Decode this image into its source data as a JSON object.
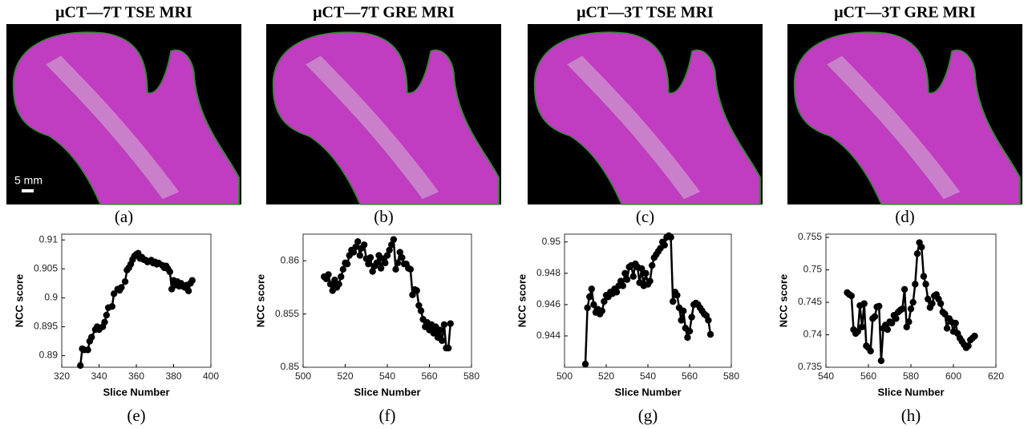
{
  "images": [
    {
      "title": "μCT—7T TSE MRI",
      "label": "(a)"
    },
    {
      "title": "μCT—7T GRE MRI",
      "label": "(b)"
    },
    {
      "title": "μCT—3T TSE MRI",
      "label": "(c)"
    },
    {
      "title": "μCT—3T GRE MRI",
      "label": "(d)"
    }
  ],
  "scale_bar": "5 mm",
  "chart_data": [
    {
      "type": "line",
      "panel_label": "(e)",
      "x_label": "Slice Number",
      "y_label": "NCC score",
      "color": "#000000",
      "xlim": [
        320,
        400
      ],
      "xticks": [
        320,
        340,
        360,
        380,
        400
      ],
      "ylim": [
        0.888,
        0.911
      ],
      "yticks": [
        0.89,
        0.895,
        0.9,
        0.905,
        0.91
      ],
      "x": [
        330,
        331,
        332,
        334,
        335,
        336,
        338,
        339,
        340,
        342,
        343,
        344,
        345,
        347,
        348,
        350,
        351,
        352,
        354,
        355,
        356,
        357,
        358,
        359,
        360,
        361,
        362,
        363,
        364,
        365,
        366,
        368,
        369,
        370,
        371,
        372,
        374,
        375,
        376,
        377,
        378,
        379,
        380,
        381,
        382,
        383,
        384,
        385,
        386,
        387,
        388,
        389,
        390
      ],
      "values": [
        0.8883,
        0.8912,
        0.891,
        0.891,
        0.8925,
        0.8932,
        0.8945,
        0.895,
        0.8945,
        0.895,
        0.8958,
        0.897,
        0.8983,
        0.8985,
        0.9007,
        0.9015,
        0.9013,
        0.9018,
        0.9028,
        0.9048,
        0.9052,
        0.9058,
        0.9066,
        0.9072,
        0.9075,
        0.9077,
        0.9068,
        0.907,
        0.9066,
        0.9065,
        0.9062,
        0.9065,
        0.906,
        0.9062,
        0.9058,
        0.906,
        0.9056,
        0.9052,
        0.9055,
        0.905,
        0.9045,
        0.9015,
        0.903,
        0.9022,
        0.9028,
        0.902,
        0.9025,
        0.902,
        0.9018,
        0.9022,
        0.9012,
        0.9025,
        0.903
      ]
    },
    {
      "type": "line",
      "panel_label": "(f)",
      "x_label": "Slice Number",
      "y_label": "NCC score",
      "color": "#000000",
      "xlim": [
        500,
        580
      ],
      "xticks": [
        500,
        520,
        540,
        560,
        580
      ],
      "ylim": [
        0.85,
        0.8625
      ],
      "yticks": [
        0.85,
        0.855,
        0.86
      ],
      "x": [
        510,
        511,
        512,
        513,
        514,
        515,
        516,
        517,
        518,
        519,
        520,
        521,
        522,
        523,
        524,
        525,
        526,
        527,
        528,
        529,
        530,
        531,
        532,
        533,
        534,
        535,
        536,
        537,
        538,
        539,
        540,
        541,
        542,
        543,
        544,
        545,
        546,
        547,
        548,
        549,
        550,
        551,
        552,
        553,
        554,
        555,
        556,
        557,
        558,
        559,
        560,
        561,
        562,
        563,
        564,
        565,
        566,
        567,
        568,
        569,
        570
      ],
      "values": [
        0.8585,
        0.8583,
        0.8587,
        0.8578,
        0.8572,
        0.8582,
        0.8575,
        0.8578,
        0.8585,
        0.8592,
        0.8598,
        0.8597,
        0.8605,
        0.861,
        0.8608,
        0.8613,
        0.8618,
        0.8605,
        0.8612,
        0.8615,
        0.8602,
        0.8597,
        0.8603,
        0.859,
        0.8595,
        0.8598,
        0.8605,
        0.8593,
        0.8602,
        0.8598,
        0.8605,
        0.861,
        0.8615,
        0.862,
        0.8592,
        0.8598,
        0.8608,
        0.8603,
        0.8597,
        0.8597,
        0.8593,
        0.8592,
        0.8568,
        0.8573,
        0.8572,
        0.8558,
        0.8553,
        0.8545,
        0.8538,
        0.8542,
        0.8535,
        0.854,
        0.8532,
        0.8538,
        0.8528,
        0.8535,
        0.8525,
        0.854,
        0.8518,
        0.8518,
        0.8541
      ]
    },
    {
      "type": "line",
      "panel_label": "(g)",
      "x_label": "Slice Number",
      "y_label": "NCC score",
      "color": "#000000",
      "xlim": [
        500,
        580
      ],
      "xticks": [
        500,
        520,
        540,
        560,
        580
      ],
      "ylim": [
        0.942,
        0.9505
      ],
      "yticks": [
        0.944,
        0.946,
        0.948,
        0.95
      ],
      "x": [
        510,
        511,
        512,
        513,
        514,
        515,
        516,
        517,
        518,
        519,
        520,
        521,
        522,
        523,
        524,
        525,
        526,
        527,
        528,
        529,
        530,
        531,
        532,
        533,
        534,
        535,
        536,
        537,
        538,
        539,
        540,
        541,
        542,
        543,
        544,
        545,
        546,
        547,
        548,
        549,
        550,
        551,
        552,
        553,
        554,
        555,
        556,
        557,
        558,
        559,
        560,
        561,
        562,
        563,
        564,
        565,
        566,
        567,
        568,
        569,
        570
      ],
      "values": [
        0.9422,
        0.9458,
        0.9465,
        0.947,
        0.946,
        0.9455,
        0.9457,
        0.9454,
        0.9456,
        0.9462,
        0.9466,
        0.9465,
        0.9468,
        0.9467,
        0.947,
        0.9468,
        0.9472,
        0.9475,
        0.9472,
        0.948,
        0.9476,
        0.9484,
        0.9485,
        0.9478,
        0.9486,
        0.9484,
        0.9474,
        0.9483,
        0.9472,
        0.948,
        0.9473,
        0.9475,
        0.9485,
        0.949,
        0.9492,
        0.9494,
        0.9496,
        0.95,
        0.9498,
        0.9503,
        0.9504,
        0.9503,
        0.9462,
        0.9468,
        0.9466,
        0.9458,
        0.945,
        0.9456,
        0.9445,
        0.9439,
        0.9443,
        0.9452,
        0.946,
        0.9461,
        0.946,
        0.9458,
        0.9456,
        0.9454,
        0.9453,
        0.945,
        0.9441
      ]
    },
    {
      "type": "line",
      "panel_label": "(h)",
      "x_label": "Slice Number",
      "y_label": "NCC score",
      "color": "#000000",
      "xlim": [
        540,
        620
      ],
      "xticks": [
        540,
        560,
        580,
        600,
        620
      ],
      "ylim": [
        0.735,
        0.7555
      ],
      "yticks": [
        0.735,
        0.74,
        0.745,
        0.75,
        0.755
      ],
      "x": [
        550,
        551,
        552,
        553,
        554,
        555,
        556,
        557,
        558,
        559,
        560,
        561,
        562,
        563,
        564,
        565,
        566,
        567,
        568,
        569,
        570,
        571,
        572,
        573,
        574,
        575,
        576,
        577,
        578,
        579,
        580,
        581,
        582,
        583,
        584,
        585,
        586,
        587,
        588,
        589,
        590,
        591,
        592,
        593,
        594,
        595,
        596,
        597,
        598,
        599,
        600,
        601,
        602,
        603,
        604,
        605,
        606,
        607,
        608,
        609,
        610
      ],
      "values": [
        0.7465,
        0.7462,
        0.746,
        0.7408,
        0.7402,
        0.7405,
        0.7445,
        0.7412,
        0.7448,
        0.7383,
        0.738,
        0.7375,
        0.7425,
        0.7428,
        0.7443,
        0.7444,
        0.736,
        0.741,
        0.7415,
        0.7408,
        0.742,
        0.7418,
        0.743,
        0.7425,
        0.7435,
        0.7438,
        0.744,
        0.747,
        0.7412,
        0.742,
        0.744,
        0.745,
        0.7478,
        0.7525,
        0.7542,
        0.7535,
        0.749,
        0.7478,
        0.7455,
        0.7442,
        0.7448,
        0.746,
        0.7462,
        0.7455,
        0.7448,
        0.7435,
        0.7432,
        0.741,
        0.7425,
        0.742,
        0.7405,
        0.7418,
        0.7402,
        0.7395,
        0.739,
        0.7385,
        0.738,
        0.7383,
        0.7392,
        0.7395,
        0.7398
      ]
    }
  ]
}
